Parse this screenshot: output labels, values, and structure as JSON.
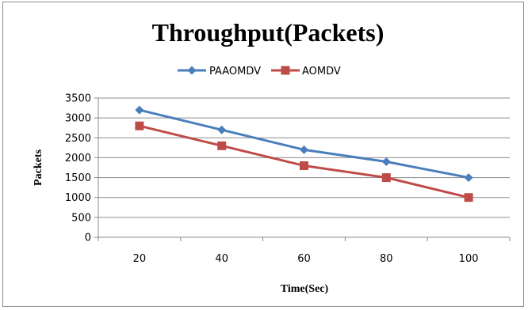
{
  "chart_data": {
    "type": "line",
    "title": "Throughput(Packets)",
    "xlabel": "Time(Sec)",
    "ylabel": "Packets",
    "categories": [
      "20",
      "40",
      "60",
      "80",
      "100"
    ],
    "ylim": [
      0,
      3500
    ],
    "yticks": [
      0,
      500,
      1000,
      1500,
      2000,
      2500,
      3000,
      3500
    ],
    "grid": true,
    "legend_position": "top",
    "series": [
      {
        "name": "PAAOMDV",
        "values": [
          3200,
          2700,
          2200,
          1900,
          1500
        ],
        "color": "#4a7ebb",
        "marker": "diamond"
      },
      {
        "name": "AOMDV",
        "values": [
          2800,
          2300,
          1800,
          1500,
          1000
        ],
        "color": "#be4b48",
        "marker": "square"
      }
    ]
  }
}
